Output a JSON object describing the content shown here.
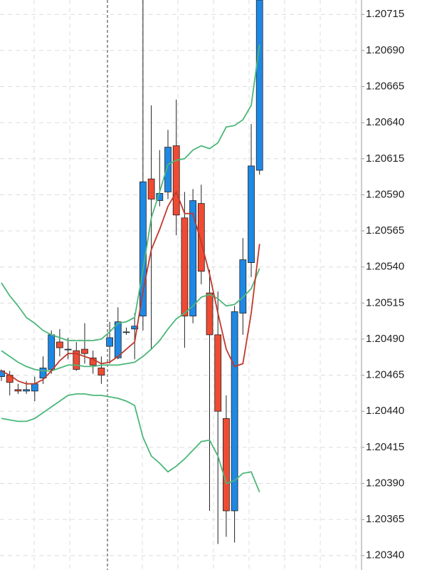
{
  "chart_data": {
    "type": "candlestick",
    "categories": [
      null,
      null,
      null,
      null,
      null,
      null,
      null,
      null,
      null,
      null,
      null,
      null,
      null,
      null,
      null,
      null,
      null,
      null,
      null,
      null,
      null,
      null,
      null,
      null,
      null,
      null,
      null,
      null,
      null,
      null,
      null,
      null
    ],
    "open": [
      1.20464,
      1.20465,
      1.20455,
      1.20454,
      1.20454,
      1.20463,
      1.20469,
      1.20488,
      1.20483,
      1.20482,
      1.20483,
      1.20477,
      1.2047,
      1.20485,
      1.20477,
      1.20495,
      1.20497,
      1.20506,
      1.20601,
      1.20586,
      1.20592,
      1.20624,
      1.20574,
      1.20506,
      1.20584,
      1.20522,
      1.20493,
      1.20435,
      1.20371,
      1.20508,
      1.20543,
      1.20607
    ],
    "high": [
      1.20469,
      1.20468,
      1.20459,
      1.20461,
      1.20464,
      1.20478,
      1.20496,
      1.20497,
      1.20491,
      1.20488,
      1.20501,
      1.20482,
      1.20478,
      1.20502,
      1.20512,
      1.20498,
      1.20508,
      1.20725,
      1.20652,
      1.20621,
      1.20635,
      1.20656,
      1.20592,
      1.20594,
      1.20597,
      1.20538,
      1.20523,
      1.20451,
      1.20513,
      1.2056,
      1.20639,
      1.20725
    ],
    "low": [
      1.20461,
      1.20451,
      1.20452,
      1.20452,
      1.20447,
      1.20459,
      1.20466,
      1.20478,
      1.20476,
      1.20468,
      1.20473,
      1.20466,
      1.20459,
      1.20473,
      1.20476,
      1.20493,
      1.20476,
      1.20496,
      1.20483,
      1.20582,
      1.20587,
      1.20562,
      1.20484,
      1.20501,
      1.20528,
      1.20371,
      1.20348,
      1.20353,
      1.20349,
      1.20493,
      1.20533,
      1.20604
    ],
    "close": [
      1.20468,
      1.2046,
      1.20454,
      1.20455,
      1.20459,
      1.2047,
      1.20493,
      1.20484,
      1.20483,
      1.20469,
      1.2048,
      1.20472,
      1.20465,
      1.20491,
      1.20502,
      1.20495,
      1.20499,
      1.20599,
      1.20587,
      1.20591,
      1.20623,
      1.20576,
      1.20506,
      1.20586,
      1.20537,
      1.20493,
      1.2044,
      1.20371,
      1.20509,
      1.20545,
      1.2061,
      1.20725
    ],
    "up_color": "#1e88e5",
    "down_color": "#ef4b33",
    "lines": [
      {
        "color": "#4cb77a",
        "values": [
          1.20529,
          1.2052,
          1.20513,
          1.20505,
          1.20501,
          1.20496,
          1.20493,
          1.20491,
          1.20489,
          1.20489,
          1.20489,
          1.20489,
          1.2049,
          1.20495,
          1.20501,
          1.20502,
          1.20505,
          1.20538,
          1.20574,
          1.20592,
          1.20611,
          1.20614,
          1.20615,
          1.20621,
          1.20624,
          1.20622,
          1.20626,
          1.20637,
          1.20638,
          1.20642,
          1.20652,
          1.20694
        ]
      },
      {
        "color": "#4cb77a",
        "values": [
          1.20482,
          1.20478,
          1.20474,
          1.20471,
          1.20469,
          1.20468,
          1.20468,
          1.2047,
          1.20472,
          1.20472,
          1.20471,
          1.20471,
          1.20472,
          1.20472,
          1.20472,
          1.20473,
          1.20474,
          1.20478,
          1.20483,
          1.20489,
          1.20497,
          1.20504,
          1.20508,
          1.20513,
          1.20519,
          1.20521,
          1.20518,
          1.20513,
          1.20514,
          1.20519,
          1.20525,
          1.20539
        ]
      },
      {
        "color": "#4cb77a",
        "values": [
          1.20435,
          1.20434,
          1.20433,
          1.20433,
          1.20435,
          1.20439,
          1.20443,
          1.20447,
          1.20451,
          1.20452,
          1.20452,
          1.20451,
          1.20451,
          1.2045,
          1.20449,
          1.20447,
          1.20444,
          1.20422,
          1.20409,
          1.20404,
          1.20398,
          1.20402,
          1.20407,
          1.20413,
          1.20419,
          1.2042,
          1.20409,
          1.2039,
          1.20392,
          1.20397,
          1.20398,
          1.20384
        ]
      },
      {
        "color": "#c0392b",
        "values": [
          1.20468,
          1.20465,
          1.20461,
          1.20459,
          1.20459,
          1.20462,
          1.20468,
          1.20475,
          1.2048,
          1.2048,
          1.20478,
          1.20476,
          1.20473,
          1.20474,
          1.20478,
          1.20483,
          1.20488,
          1.20523,
          1.20552,
          1.20566,
          1.20582,
          1.20592,
          1.20577,
          1.20577,
          1.20557,
          1.20535,
          1.20508,
          1.20483,
          1.20471,
          1.20473,
          1.20508,
          1.20556
        ]
      }
    ],
    "ylim": [
      1.2033,
      1.20725
    ],
    "yticks": [
      1.20715,
      {
        "value": 1.2069,
        "label": "1.20690"
      },
      1.20665,
      {
        "value": 1.2064,
        "label": "1.20640"
      },
      1.20615,
      {
        "value": 1.2059,
        "label": "1.20590"
      },
      1.20565,
      {
        "value": 1.2054,
        "label": "1.20540"
      },
      1.20515,
      {
        "value": 1.2049,
        "label": "1.20490"
      },
      1.20465,
      {
        "value": 1.2044,
        "label": "1.20440"
      },
      1.20415,
      {
        "value": 1.2039,
        "label": "1.20390"
      },
      1.20365,
      {
        "value": 1.2034,
        "label": "1.20340"
      }
    ],
    "grid": true
  }
}
